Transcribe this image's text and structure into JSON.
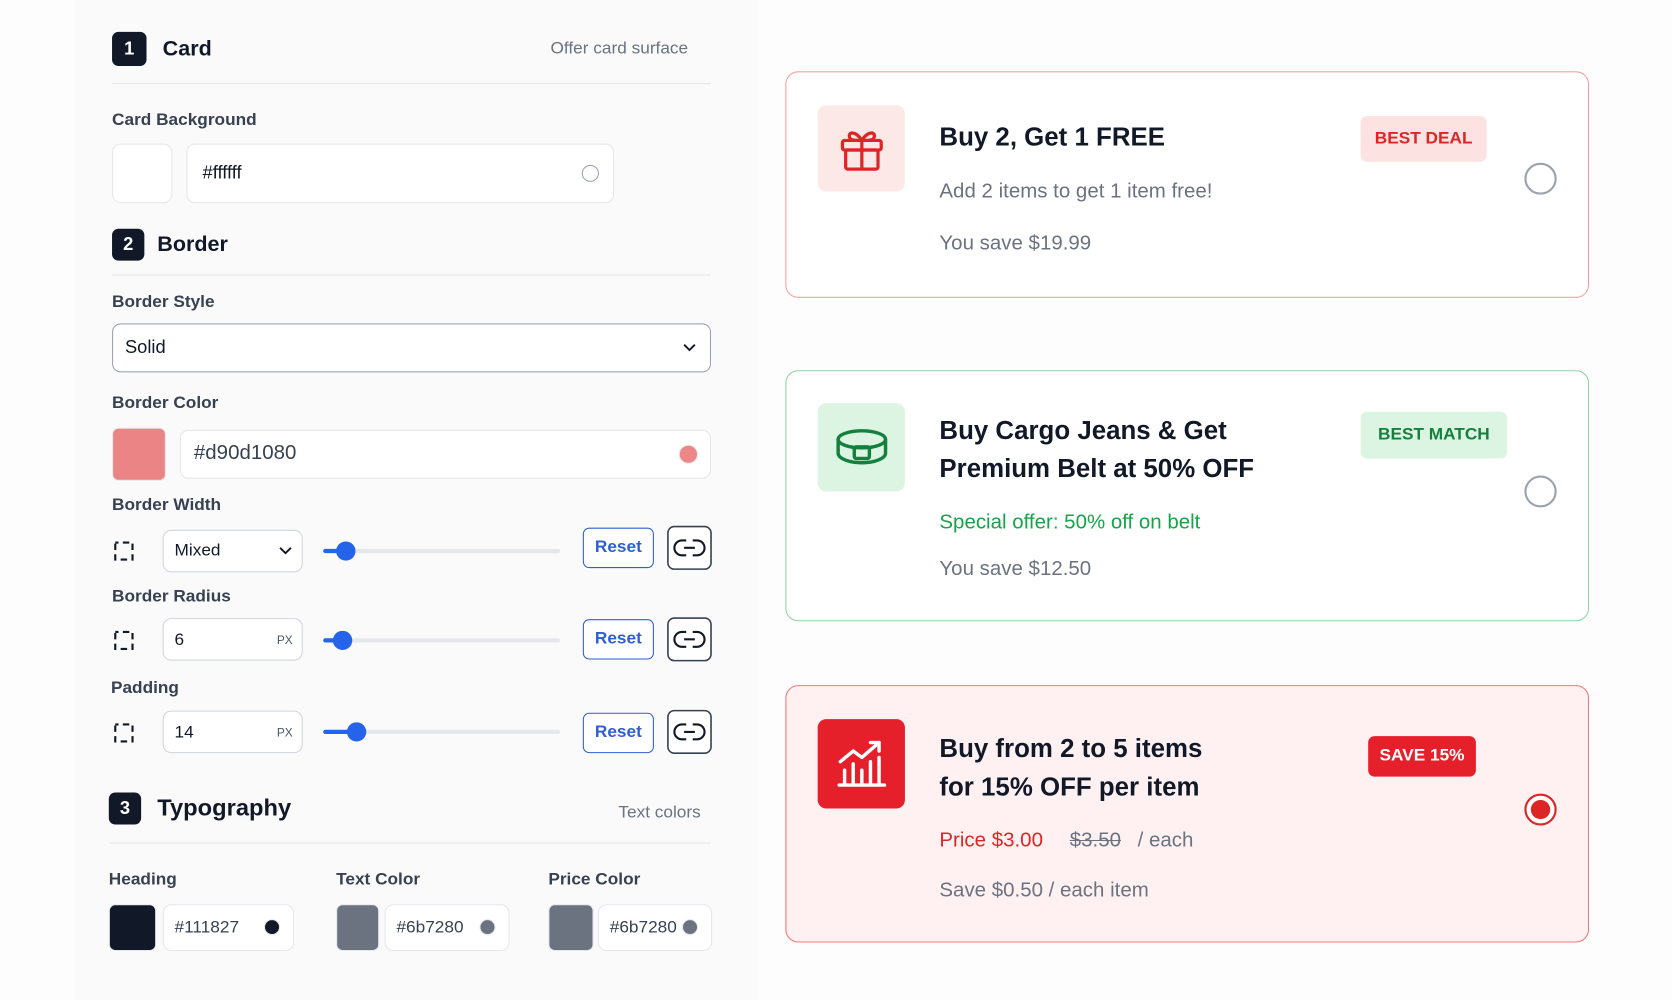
{
  "settings": {
    "card": {
      "number": "1",
      "title": "Card",
      "hint": "Offer card surface",
      "background_label": "Card Background",
      "background_value": "#ffffff"
    },
    "border": {
      "number": "2",
      "title": "Border",
      "style_label": "Border Style",
      "style_value": "Solid",
      "color_label": "Border Color",
      "color_value": "#d90d1080",
      "width_label": "Border Width",
      "width_mode": "Mixed",
      "radius_label": "Border Radius",
      "radius_value": "6",
      "padding_label": "Padding",
      "padding_value": "14",
      "unit": "PX",
      "reset": "Reset"
    },
    "typography": {
      "number": "3",
      "title": "Typography",
      "hint": "Text colors",
      "fields": [
        {
          "label": "Heading",
          "value": "#111827"
        },
        {
          "label": "Text Color",
          "value": "#6b7280"
        },
        {
          "label": "Price Color",
          "value": "#6b7280"
        }
      ]
    }
  },
  "offers": [
    {
      "title": "Buy 2, Get 1 FREE",
      "badge": "BEST DEAL",
      "description": "Add 2 items to get 1 item free!",
      "savings": "You save $19.99"
    },
    {
      "title_lines": [
        "Buy Cargo Jeans & Get",
        "Premium Belt at 50% OFF"
      ],
      "badge": "BEST MATCH",
      "description": "Special offer: 50% off on belt",
      "savings": "You save $12.50"
    },
    {
      "title_lines": [
        "Buy from 2 to 5 items",
        "for 15% OFF per item"
      ],
      "badge": "SAVE 15%",
      "price": "Price $3.00",
      "original_price": "$3.50",
      "price_unit": "/ each",
      "savings": "Save $0.50 / each item"
    }
  ]
}
